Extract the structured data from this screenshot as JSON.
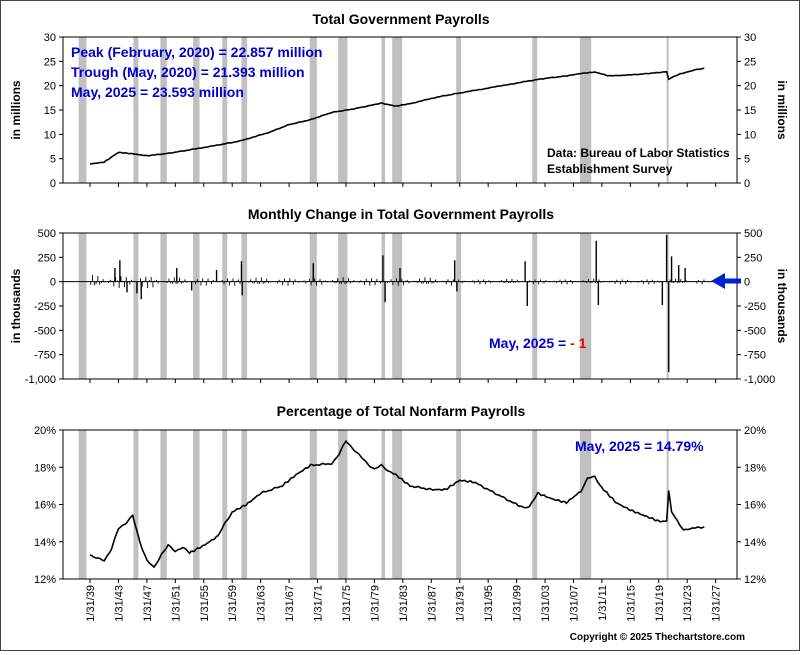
{
  "chart_data": [
    {
      "type": "line",
      "title": "Total Government Payrolls",
      "ylabel": "in millions",
      "ylim": [
        0,
        30
      ],
      "yticks": [
        "0",
        "5",
        "10",
        "15",
        "20",
        "25",
        "30"
      ],
      "annotations": {
        "peak": "Peak (February, 2020) = 22.857 million",
        "trough": "Trough (May, 2020) = 21.393 million",
        "latest": "May, 2025 = 23.593 million"
      },
      "source_line1": "Data:  Bureau of Labor Statistics",
      "source_line2": "Establishment Survey",
      "x": [
        1939,
        1941,
        1943,
        1945,
        1947,
        1950,
        1953,
        1957,
        1960,
        1964,
        1967,
        1970,
        1973,
        1976,
        1979,
        1980,
        1982,
        1984,
        1988,
        1991,
        1995,
        2000,
        2003,
        2006,
        2008,
        2010,
        2012,
        2016,
        2020.1,
        2020.4,
        2022,
        2024,
        2025.4
      ],
      "values": [
        3.9,
        4.3,
        6.3,
        6.0,
        5.6,
        6.1,
        6.8,
        7.8,
        8.6,
        10.3,
        12.0,
        13.0,
        14.5,
        15.2,
        16.1,
        16.4,
        15.8,
        16.3,
        17.7,
        18.5,
        19.5,
        20.8,
        21.5,
        22.0,
        22.5,
        22.8,
        22.0,
        22.3,
        22.857,
        21.393,
        22.4,
        23.2,
        23.593
      ]
    },
    {
      "type": "bar",
      "title": "Monthly Change in Total Government Payrolls",
      "ylabel": "in thousands",
      "ylim": [
        -1000,
        500
      ],
      "yticks": [
        "500",
        "250",
        "0",
        "-250",
        "-500",
        "-750",
        "-1,000"
      ],
      "annotation_prefix": "May, 2025 = ",
      "annotation_value": "- 1",
      "spikes": [
        {
          "x": 1942.5,
          "v": 140
        },
        {
          "x": 1943.2,
          "v": 220
        },
        {
          "x": 1944.2,
          "v": -110
        },
        {
          "x": 1945.6,
          "v": -120
        },
        {
          "x": 1946.2,
          "v": -180
        },
        {
          "x": 1951.2,
          "v": 140
        },
        {
          "x": 1953.3,
          "v": -90
        },
        {
          "x": 1956.8,
          "v": 120
        },
        {
          "x": 1960.3,
          "v": 210
        },
        {
          "x": 1960.4,
          "v": -140
        },
        {
          "x": 1970.4,
          "v": 190
        },
        {
          "x": 1980.2,
          "v": 270
        },
        {
          "x": 1980.5,
          "v": -210
        },
        {
          "x": 1982.6,
          "v": 140
        },
        {
          "x": 1990.3,
          "v": 220
        },
        {
          "x": 1990.6,
          "v": -100
        },
        {
          "x": 2000.2,
          "v": 210
        },
        {
          "x": 2000.5,
          "v": -250
        },
        {
          "x": 2010.2,
          "v": 420
        },
        {
          "x": 2010.5,
          "v": -240
        },
        {
          "x": 2019.5,
          "v": -240
        },
        {
          "x": 2020.1,
          "v": 480
        },
        {
          "x": 2020.4,
          "v": -930
        },
        {
          "x": 2020.8,
          "v": 260
        },
        {
          "x": 2021.8,
          "v": 170
        },
        {
          "x": 2022.7,
          "v": 140
        },
        {
          "x": 2025.4,
          "v": -1
        }
      ]
    },
    {
      "type": "line",
      "title": "Percentage of Total Nonfarm Payrolls",
      "ylim": [
        12,
        20
      ],
      "yticks": [
        "20%",
        "18%",
        "16%",
        "14%",
        "12%"
      ],
      "annotation": "May, 2025 = 14.79%",
      "x": [
        1939,
        1940,
        1941,
        1942,
        1943,
        1944,
        1945,
        1946,
        1947,
        1948,
        1949,
        1950,
        1951,
        1952,
        1953,
        1955,
        1957,
        1958,
        1959,
        1961,
        1963,
        1966,
        1968,
        1970,
        1973,
        1974,
        1975,
        1976,
        1977,
        1978,
        1979,
        1980,
        1981,
        1982,
        1984,
        1987,
        1989,
        1991,
        1993,
        1996,
        1999,
        2000.3,
        2000.8,
        2002,
        2004,
        2006,
        2008,
        2009,
        2010,
        2011,
        2013,
        2015,
        2017,
        2019,
        2020.1,
        2020.4,
        2020.8,
        2021.5,
        2022.5,
        2023.5,
        2025.4
      ],
      "values": [
        13.3,
        13.1,
        13.0,
        13.6,
        14.7,
        15.0,
        15.4,
        14.0,
        13.0,
        12.6,
        13.3,
        13.8,
        13.5,
        13.7,
        13.4,
        13.8,
        14.3,
        15.0,
        15.6,
        16.0,
        16.6,
        17.0,
        17.6,
        18.1,
        18.2,
        18.7,
        19.4,
        19.0,
        18.6,
        18.2,
        17.9,
        18.1,
        17.8,
        17.6,
        17.0,
        16.8,
        16.8,
        17.3,
        17.2,
        16.6,
        16.0,
        15.8,
        15.9,
        16.6,
        16.3,
        16.1,
        16.7,
        17.4,
        17.5,
        16.9,
        16.1,
        15.7,
        15.4,
        15.1,
        15.1,
        16.8,
        15.6,
        15.2,
        14.6,
        14.7,
        14.79
      ]
    }
  ],
  "x_axis": {
    "tick_labels": [
      "1/31/39",
      "1/31/43",
      "1/31/47",
      "1/31/51",
      "1/31/55",
      "1/31/59",
      "1/31/63",
      "1/31/67",
      "1/31/71",
      "1/31/75",
      "1/31/79",
      "1/31/83",
      "1/31/87",
      "1/31/91",
      "1/31/95",
      "1/31/99",
      "1/31/03",
      "1/31/07",
      "1/31/11",
      "1/31/15",
      "1/31/19",
      "1/31/23",
      "1/31/27"
    ],
    "tick_years": [
      1939,
      1943,
      1947,
      1951,
      1955,
      1959,
      1963,
      1967,
      1971,
      1975,
      1979,
      1983,
      1987,
      1991,
      1995,
      1999,
      2003,
      2007,
      2011,
      2015,
      2019,
      2023,
      2027
    ]
  },
  "recessions": [
    [
      1937.4,
      1938.5
    ],
    [
      1945.1,
      1945.8
    ],
    [
      1948.9,
      1949.8
    ],
    [
      1953.5,
      1954.4
    ],
    [
      1957.6,
      1958.3
    ],
    [
      1960.3,
      1961.1
    ],
    [
      1969.9,
      1970.9
    ],
    [
      1973.9,
      1975.2
    ],
    [
      1980.0,
      1980.5
    ],
    [
      1981.5,
      1982.9
    ],
    [
      1990.5,
      1991.2
    ],
    [
      2001.2,
      2001.9
    ],
    [
      2007.9,
      2009.5
    ],
    [
      2020.1,
      2020.3
    ]
  ],
  "copyright": "Copyright © 2025 Thechartstore.com",
  "colors": {
    "recession": "#c0c0c0",
    "line": "#000000",
    "annotation": "#0000cc",
    "highlight": "#ee0000",
    "arrow": "#0022cc"
  }
}
